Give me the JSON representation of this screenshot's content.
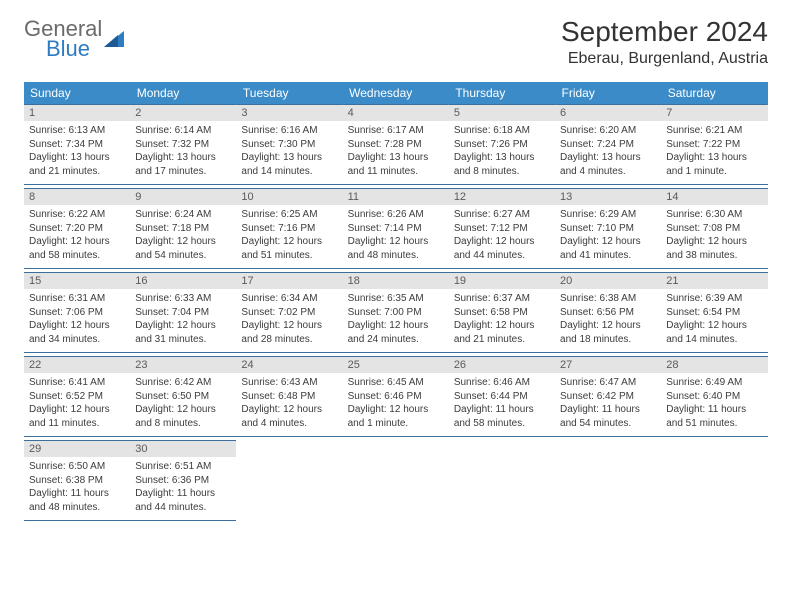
{
  "logo": {
    "word1": "General",
    "word2": "Blue"
  },
  "title": "September 2024",
  "location": "Eberau, Burgenland, Austria",
  "colors": {
    "header_bg": "#3b8bc8",
    "header_text": "#ffffff",
    "daynum_bg": "#e4e4e4",
    "daynum_text": "#5a5a5a",
    "cell_border": "#3b6f9c",
    "body_text": "#3c3c3c",
    "logo_gray": "#6b6b6b",
    "logo_blue": "#2e7cc2"
  },
  "weekdays": [
    "Sunday",
    "Monday",
    "Tuesday",
    "Wednesday",
    "Thursday",
    "Friday",
    "Saturday"
  ],
  "cells": [
    {
      "n": "1",
      "sr": "Sunrise: 6:13 AM",
      "ss": "Sunset: 7:34 PM",
      "d1": "Daylight: 13 hours",
      "d2": "and 21 minutes."
    },
    {
      "n": "2",
      "sr": "Sunrise: 6:14 AM",
      "ss": "Sunset: 7:32 PM",
      "d1": "Daylight: 13 hours",
      "d2": "and 17 minutes."
    },
    {
      "n": "3",
      "sr": "Sunrise: 6:16 AM",
      "ss": "Sunset: 7:30 PM",
      "d1": "Daylight: 13 hours",
      "d2": "and 14 minutes."
    },
    {
      "n": "4",
      "sr": "Sunrise: 6:17 AM",
      "ss": "Sunset: 7:28 PM",
      "d1": "Daylight: 13 hours",
      "d2": "and 11 minutes."
    },
    {
      "n": "5",
      "sr": "Sunrise: 6:18 AM",
      "ss": "Sunset: 7:26 PM",
      "d1": "Daylight: 13 hours",
      "d2": "and 8 minutes."
    },
    {
      "n": "6",
      "sr": "Sunrise: 6:20 AM",
      "ss": "Sunset: 7:24 PM",
      "d1": "Daylight: 13 hours",
      "d2": "and 4 minutes."
    },
    {
      "n": "7",
      "sr": "Sunrise: 6:21 AM",
      "ss": "Sunset: 7:22 PM",
      "d1": "Daylight: 13 hours",
      "d2": "and 1 minute."
    },
    {
      "n": "8",
      "sr": "Sunrise: 6:22 AM",
      "ss": "Sunset: 7:20 PM",
      "d1": "Daylight: 12 hours",
      "d2": "and 58 minutes."
    },
    {
      "n": "9",
      "sr": "Sunrise: 6:24 AM",
      "ss": "Sunset: 7:18 PM",
      "d1": "Daylight: 12 hours",
      "d2": "and 54 minutes."
    },
    {
      "n": "10",
      "sr": "Sunrise: 6:25 AM",
      "ss": "Sunset: 7:16 PM",
      "d1": "Daylight: 12 hours",
      "d2": "and 51 minutes."
    },
    {
      "n": "11",
      "sr": "Sunrise: 6:26 AM",
      "ss": "Sunset: 7:14 PM",
      "d1": "Daylight: 12 hours",
      "d2": "and 48 minutes."
    },
    {
      "n": "12",
      "sr": "Sunrise: 6:27 AM",
      "ss": "Sunset: 7:12 PM",
      "d1": "Daylight: 12 hours",
      "d2": "and 44 minutes."
    },
    {
      "n": "13",
      "sr": "Sunrise: 6:29 AM",
      "ss": "Sunset: 7:10 PM",
      "d1": "Daylight: 12 hours",
      "d2": "and 41 minutes."
    },
    {
      "n": "14",
      "sr": "Sunrise: 6:30 AM",
      "ss": "Sunset: 7:08 PM",
      "d1": "Daylight: 12 hours",
      "d2": "and 38 minutes."
    },
    {
      "n": "15",
      "sr": "Sunrise: 6:31 AM",
      "ss": "Sunset: 7:06 PM",
      "d1": "Daylight: 12 hours",
      "d2": "and 34 minutes."
    },
    {
      "n": "16",
      "sr": "Sunrise: 6:33 AM",
      "ss": "Sunset: 7:04 PM",
      "d1": "Daylight: 12 hours",
      "d2": "and 31 minutes."
    },
    {
      "n": "17",
      "sr": "Sunrise: 6:34 AM",
      "ss": "Sunset: 7:02 PM",
      "d1": "Daylight: 12 hours",
      "d2": "and 28 minutes."
    },
    {
      "n": "18",
      "sr": "Sunrise: 6:35 AM",
      "ss": "Sunset: 7:00 PM",
      "d1": "Daylight: 12 hours",
      "d2": "and 24 minutes."
    },
    {
      "n": "19",
      "sr": "Sunrise: 6:37 AM",
      "ss": "Sunset: 6:58 PM",
      "d1": "Daylight: 12 hours",
      "d2": "and 21 minutes."
    },
    {
      "n": "20",
      "sr": "Sunrise: 6:38 AM",
      "ss": "Sunset: 6:56 PM",
      "d1": "Daylight: 12 hours",
      "d2": "and 18 minutes."
    },
    {
      "n": "21",
      "sr": "Sunrise: 6:39 AM",
      "ss": "Sunset: 6:54 PM",
      "d1": "Daylight: 12 hours",
      "d2": "and 14 minutes."
    },
    {
      "n": "22",
      "sr": "Sunrise: 6:41 AM",
      "ss": "Sunset: 6:52 PM",
      "d1": "Daylight: 12 hours",
      "d2": "and 11 minutes."
    },
    {
      "n": "23",
      "sr": "Sunrise: 6:42 AM",
      "ss": "Sunset: 6:50 PM",
      "d1": "Daylight: 12 hours",
      "d2": "and 8 minutes."
    },
    {
      "n": "24",
      "sr": "Sunrise: 6:43 AM",
      "ss": "Sunset: 6:48 PM",
      "d1": "Daylight: 12 hours",
      "d2": "and 4 minutes."
    },
    {
      "n": "25",
      "sr": "Sunrise: 6:45 AM",
      "ss": "Sunset: 6:46 PM",
      "d1": "Daylight: 12 hours",
      "d2": "and 1 minute."
    },
    {
      "n": "26",
      "sr": "Sunrise: 6:46 AM",
      "ss": "Sunset: 6:44 PM",
      "d1": "Daylight: 11 hours",
      "d2": "and 58 minutes."
    },
    {
      "n": "27",
      "sr": "Sunrise: 6:47 AM",
      "ss": "Sunset: 6:42 PM",
      "d1": "Daylight: 11 hours",
      "d2": "and 54 minutes."
    },
    {
      "n": "28",
      "sr": "Sunrise: 6:49 AM",
      "ss": "Sunset: 6:40 PM",
      "d1": "Daylight: 11 hours",
      "d2": "and 51 minutes."
    },
    {
      "n": "29",
      "sr": "Sunrise: 6:50 AM",
      "ss": "Sunset: 6:38 PM",
      "d1": "Daylight: 11 hours",
      "d2": "and 48 minutes."
    },
    {
      "n": "30",
      "sr": "Sunrise: 6:51 AM",
      "ss": "Sunset: 6:36 PM",
      "d1": "Daylight: 11 hours",
      "d2": "and 44 minutes."
    }
  ]
}
